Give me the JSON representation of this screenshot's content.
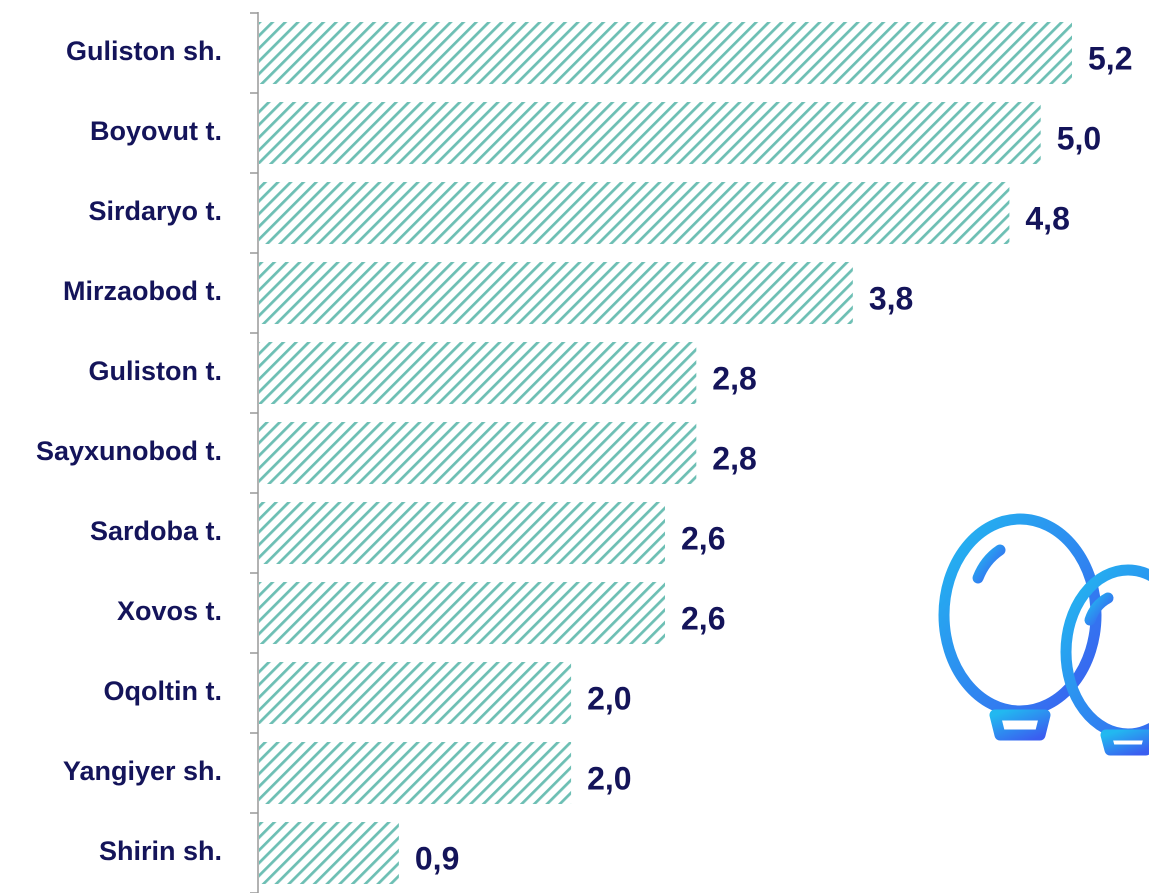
{
  "chart_data": {
    "type": "bar",
    "orientation": "horizontal",
    "categories": [
      "Guliston sh.",
      "Boyovut t.",
      "Sirdaryo t.",
      "Mirzaobod t.",
      "Guliston t.",
      "Sayxunobod t.",
      "Sardoba t.",
      "Xovos t.",
      "Oqoltin t.",
      "Yangiyer sh.",
      "Shirin sh."
    ],
    "values": [
      5.2,
      5.0,
      4.8,
      3.8,
      2.8,
      2.8,
      2.6,
      2.6,
      2.0,
      2.0,
      0.9
    ],
    "value_labels": [
      "5,2",
      "5,0",
      "4,8",
      "3,8",
      "2,8",
      "2,8",
      "2,6",
      "2,6",
      "2,0",
      "2,0",
      "0,9"
    ],
    "color": "#6dbfb4"
  }
}
